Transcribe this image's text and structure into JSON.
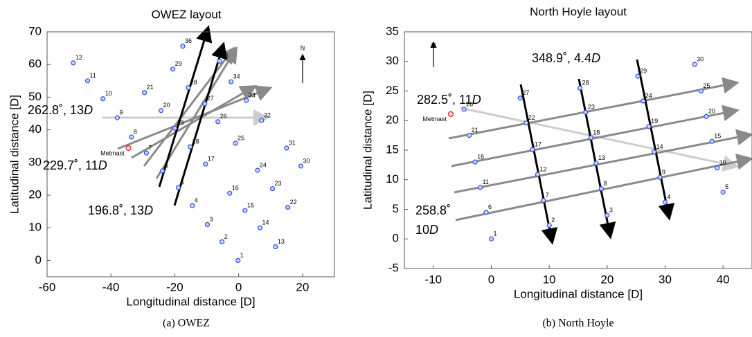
{
  "chart_data": [
    {
      "type": "scatter",
      "title": "OWEZ layout",
      "xlabel": "Longitudinal distance [D]",
      "ylabel": "Latitudinal distance [D]",
      "caption": "(a) OWEZ",
      "xlim": [
        -60,
        30
      ],
      "ylim": [
        -5,
        70
      ],
      "xticks": [
        -60,
        -40,
        -20,
        0,
        20
      ],
      "yticks": [
        0,
        10,
        20,
        30,
        40,
        50,
        60,
        70
      ],
      "points": {
        "color": "#2f4fe0",
        "labels": [
          "1",
          "2",
          "3",
          "4",
          "5",
          "6",
          "7",
          "8",
          "9",
          "10",
          "11",
          "12",
          "13",
          "14",
          "15",
          "16",
          "17",
          "18",
          "19",
          "20",
          "21",
          "22",
          "23",
          "24",
          "25",
          "26",
          "27",
          "28",
          "29",
          "30",
          "31",
          "32",
          "33",
          "34",
          "35",
          "36"
        ],
        "x": [
          -0.2,
          -5.2,
          -9.8,
          -14.5,
          -18.9,
          -23.9,
          -28.9,
          -33.6,
          -38,
          -42.5,
          -47.3,
          -51.8,
          11.5,
          6.7,
          2,
          -2.8,
          -10.4,
          -15.2,
          -20,
          -24.3,
          -29.5,
          15.4,
          10.6,
          5.9,
          -1,
          -6.5,
          -10.6,
          -15.8,
          -20.6,
          19.5,
          15,
          7.2,
          2.4,
          -2.4,
          -6,
          -17.5
        ],
        "y": [
          0,
          5.7,
          11,
          16.8,
          22.3,
          27.4,
          32.9,
          37.8,
          43.7,
          49.5,
          55,
          60.5,
          4.2,
          10,
          15.3,
          20.6,
          29.5,
          34.8,
          40.5,
          45.9,
          51.4,
          16.3,
          22,
          27.6,
          35.9,
          42.5,
          48,
          52.9,
          58.6,
          28.9,
          34.4,
          42.9,
          49,
          54.7,
          61,
          65.6
        ]
      },
      "metmast": {
        "label": "Metmast",
        "x": -34.5,
        "y": 34.4,
        "color": "#e02020"
      },
      "north": "N",
      "annotations": [
        {
          "text": "262.8˚, 13",
          "suffix": "D"
        },
        {
          "text": "229.7˚, 11",
          "suffix": "D"
        },
        {
          "text": "196.8˚, 13",
          "suffix": "D"
        }
      ]
    },
    {
      "type": "scatter",
      "title": "North Hoyle layout",
      "xlabel": "Longitudinal distance [D]",
      "ylabel": "Latitudinal distance [D]",
      "caption": "(b) North Hoyle",
      "xlim": [
        -15,
        45
      ],
      "ylim": [
        -5,
        35
      ],
      "xticks": [
        -10,
        0,
        10,
        20,
        30,
        40
      ],
      "yticks": [
        -5,
        0,
        5,
        10,
        15,
        20,
        25,
        30,
        35
      ],
      "points": {
        "color": "#2f4fe0",
        "labels": [
          "1",
          "2",
          "3",
          "4",
          "5",
          "6",
          "7",
          "8",
          "9",
          "10",
          "11",
          "12",
          "13",
          "14",
          "15",
          "16",
          "17",
          "18",
          "19",
          "20",
          "21",
          "22",
          "23",
          "24",
          "25",
          "26",
          "27",
          "28",
          "29",
          "30"
        ],
        "x": [
          0,
          10,
          20,
          30,
          40,
          -0.9,
          9,
          19,
          29.1,
          39,
          -1.9,
          8,
          18.1,
          28.1,
          38.1,
          -2.8,
          7.1,
          17.2,
          27.2,
          37.1,
          -3.8,
          6,
          16.3,
          26.2,
          36.2,
          -4.7,
          5,
          15.3,
          25.3,
          35.1
        ],
        "y": [
          0,
          2.3,
          4,
          6.2,
          7.9,
          4.5,
          6.5,
          8.5,
          10.4,
          12,
          8.7,
          10.9,
          12.8,
          14.7,
          16.5,
          13,
          15.1,
          17.1,
          19,
          20.7,
          17.5,
          19.6,
          21.4,
          23.3,
          25,
          21.9,
          23.8,
          25.5,
          27.5,
          29.5
        ]
      },
      "metmast": {
        "label": "Metmast",
        "x": -7,
        "y": 21.1,
        "color": "#e02020"
      },
      "north": "N",
      "annotations": [
        {
          "text": "348.9˚, 4.4",
          "suffix": "D"
        },
        {
          "text": "282.5˚, 11",
          "suffix": "D"
        },
        {
          "text": "258.8˚"
        },
        {
          "text": "10",
          "suffix": "D"
        }
      ]
    }
  ]
}
